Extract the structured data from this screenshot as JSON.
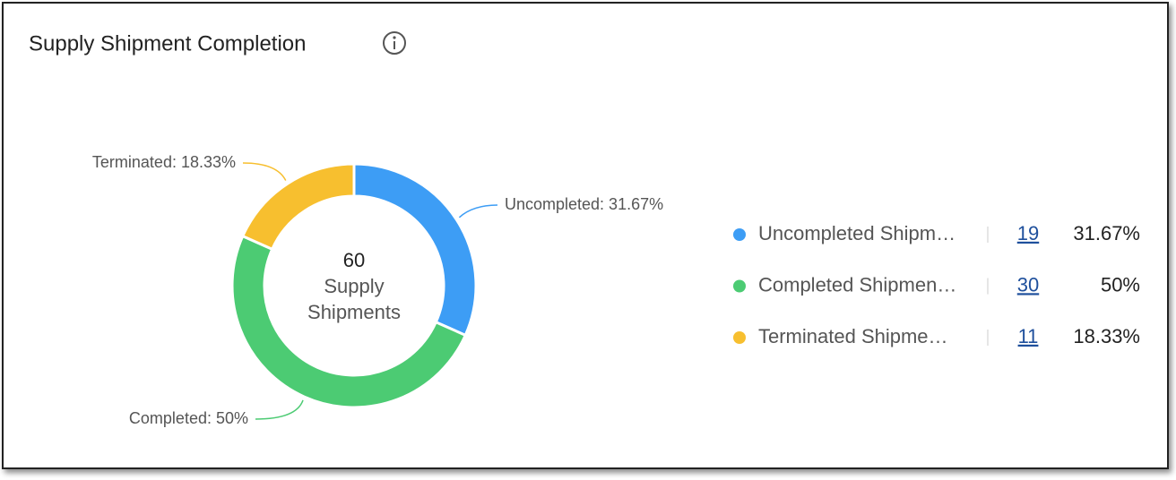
{
  "chart_data": {
    "type": "pie",
    "title": "Supply Shipment Completion",
    "center_value": 60,
    "center_label": "Supply Shipments",
    "categories": [
      "Uncompleted",
      "Completed",
      "Terminated"
    ],
    "values": [
      31.67,
      50,
      18.33
    ],
    "value_labels": [
      "Uncompleted: 31.67%",
      "Completed: 50%",
      "Terminated: 18.33%"
    ],
    "colors": [
      "#3d9df5",
      "#4ccb73",
      "#f7bf2f"
    ],
    "legend": {
      "names": [
        "Uncompleted Shipm…",
        "Completed Shipmen…",
        "Terminated Shipme…"
      ],
      "counts": [
        19,
        30,
        11
      ],
      "percent_labels": [
        "31.67%",
        "50%",
        "18.33%"
      ]
    }
  }
}
